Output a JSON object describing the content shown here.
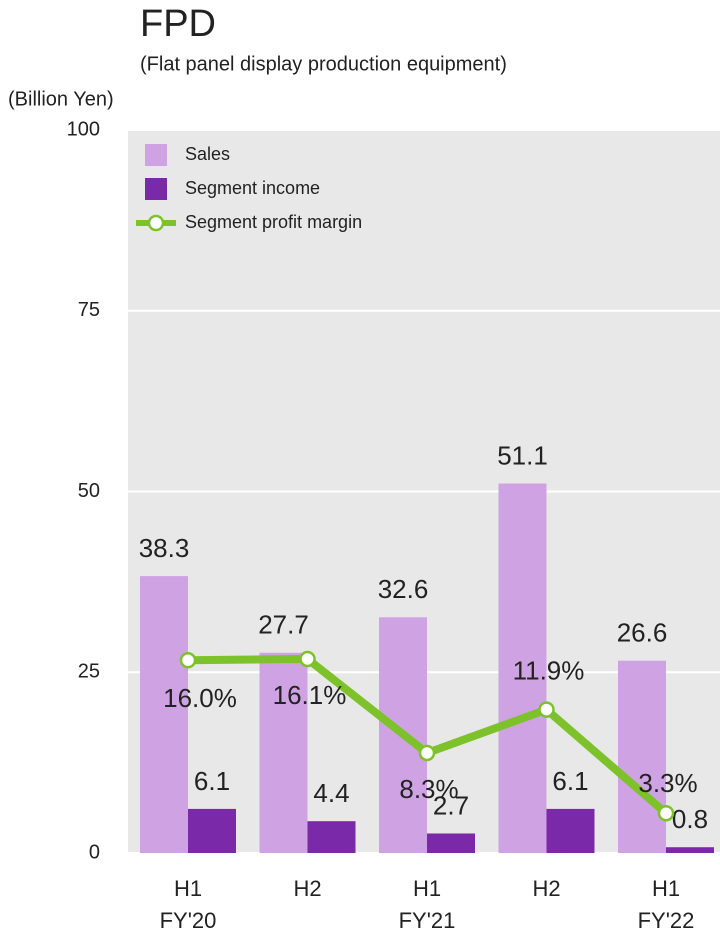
{
  "chart_data": {
    "type": "bar_line",
    "title": "FPD",
    "subtitle": "(Flat panel display production equipment)",
    "y_axis_label": "(Billion Yen)",
    "categories": [
      "H1",
      "H2",
      "H1",
      "H2",
      "H1"
    ],
    "fiscal_years": [
      "FY'20",
      null,
      "FY'21",
      null,
      "FY'22"
    ],
    "ylim": [
      0,
      100
    ],
    "yticks": [
      0,
      25,
      50,
      75,
      100
    ],
    "grid": true,
    "y2lim": [
      0,
      60
    ],
    "legend": "upper left",
    "series": [
      {
        "name": "Sales",
        "type": "bar",
        "color": "#cfa3e3",
        "values": [
          38.3,
          27.7,
          32.6,
          51.1,
          26.6
        ]
      },
      {
        "name": "Segment income",
        "type": "bar",
        "color": "#7a2aa8",
        "values": [
          6.1,
          4.4,
          2.7,
          6.1,
          0.8
        ]
      },
      {
        "name": "Segment profit margin",
        "type": "line",
        "axis": "y2",
        "color": "#7dc22a",
        "values": [
          16.0,
          16.1,
          8.3,
          11.9,
          3.3
        ],
        "value_labels": [
          "16.0%",
          "16.1%",
          "8.3%",
          "11.9%",
          "3.3%"
        ]
      }
    ]
  }
}
